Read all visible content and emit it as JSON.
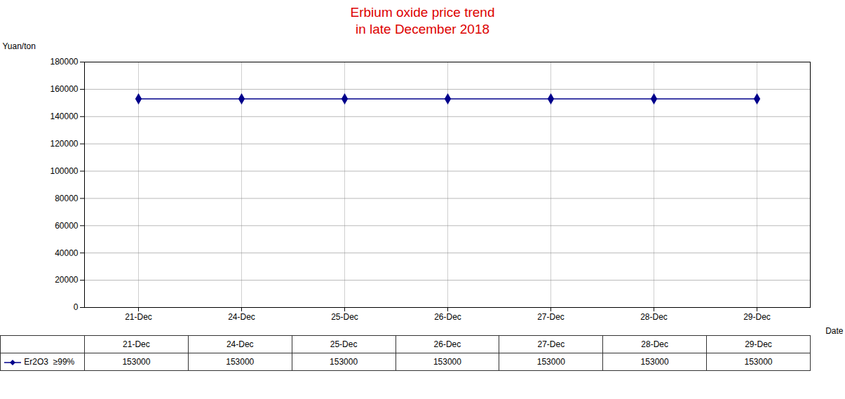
{
  "chart_data": {
    "type": "line",
    "title": "Erbium oxide price trend",
    "subtitle": "in late December 2018",
    "x_label": "Date",
    "y_label": "Yuan/ton",
    "categories": [
      "21-Dec",
      "24-Dec",
      "25-Dec",
      "26-Dec",
      "27-Dec",
      "28-Dec",
      "29-Dec"
    ],
    "series": [
      {
        "name": "Er2O3  ≥99%",
        "color": "#00008B",
        "marker": "diamond",
        "values": [
          153000,
          153000,
          153000,
          153000,
          153000,
          153000,
          153000
        ]
      }
    ],
    "ylim": [
      0,
      180000
    ],
    "yticks": [
      0,
      20000,
      40000,
      60000,
      80000,
      100000,
      120000,
      140000,
      160000,
      180000
    ],
    "grid": true
  }
}
